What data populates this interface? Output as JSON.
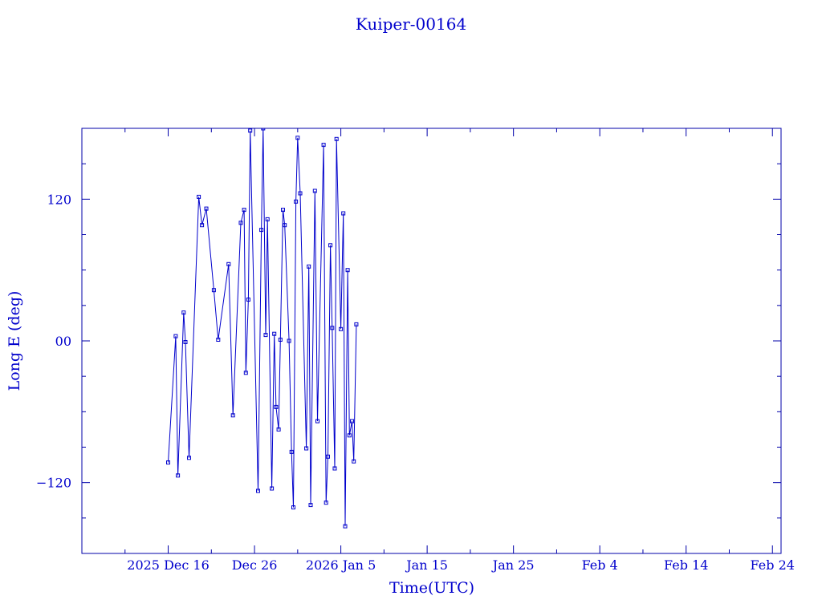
{
  "chart_data": {
    "type": "line",
    "title": "Kuiper-00164",
    "xlabel": "Time(UTC)",
    "ylabel": "Long E (deg)",
    "xlim": [
      "2025-12-06",
      "2026-02-25"
    ],
    "ylim": [
      -180,
      180
    ],
    "x_ticks": [
      {
        "date": "2025-12-16",
        "label": "2025 Dec 16"
      },
      {
        "date": "2025-12-26",
        "label": "Dec 26"
      },
      {
        "date": "2026-01-05",
        "label": "2026 Jan  5"
      },
      {
        "date": "2026-01-15",
        "label": "Jan 15"
      },
      {
        "date": "2026-01-25",
        "label": "Jan 25"
      },
      {
        "date": "2026-02-04",
        "label": "Feb  4"
      },
      {
        "date": "2026-02-14",
        "label": "Feb 14"
      },
      {
        "date": "2026-02-24",
        "label": "Feb 24"
      }
    ],
    "y_ticks": [
      {
        "value": 120,
        "label": "120"
      },
      {
        "value": 0,
        "label": "00"
      },
      {
        "value": -120,
        "label": "−120"
      }
    ],
    "grid": false,
    "marker": "square",
    "color": "#0000cc",
    "series": [
      {
        "points": [
          [
            "2025-12-16T00:00",
            -103
          ],
          [
            "2025-12-16T21:00",
            4
          ],
          [
            "2025-12-17T03:00",
            -114
          ],
          [
            "2025-12-17T19:00",
            24
          ],
          [
            "2025-12-18T00:00",
            -1
          ],
          [
            "2025-12-18T10:00",
            -99
          ],
          [
            "2025-12-19T13:00",
            122
          ],
          [
            "2025-12-19T22:00",
            98
          ],
          [
            "2025-12-20T10:00",
            112
          ],
          [
            "2025-12-21T07:00",
            43
          ],
          [
            "2025-12-21T19:00",
            1
          ],
          [
            "2025-12-23T00:00",
            65
          ],
          [
            "2025-12-23T12:00",
            -63
          ],
          [
            "2025-12-24T10:00",
            100
          ],
          [
            "2025-12-24T19:00",
            111
          ],
          [
            "2025-12-25T00:00",
            -27
          ],
          [
            "2025-12-25T07:00",
            35
          ],
          [
            "2025-12-25T12:00",
            178
          ],
          [
            "2025-12-26T10:00",
            -127
          ],
          [
            "2025-12-26T19:00",
            94
          ],
          [
            "2025-12-27T00:00",
            180
          ],
          [
            "2025-12-27T07:00",
            5
          ],
          [
            "2025-12-27T12:00",
            103
          ],
          [
            "2025-12-28T00:00",
            -125
          ],
          [
            "2025-12-28T07:00",
            6
          ],
          [
            "2025-12-28T12:00",
            -56
          ],
          [
            "2025-12-28T19:00",
            -75
          ],
          [
            "2025-12-29T00:00",
            1
          ],
          [
            "2025-12-29T07:00",
            111
          ],
          [
            "2025-12-29T12:00",
            98
          ],
          [
            "2025-12-30T00:00",
            0
          ],
          [
            "2025-12-30T07:00",
            -94
          ],
          [
            "2025-12-30T12:00",
            -141
          ],
          [
            "2025-12-30T19:00",
            118
          ],
          [
            "2025-12-31T00:00",
            172
          ],
          [
            "2025-12-31T07:00",
            125
          ],
          [
            "2026-01-01T00:00",
            -91
          ],
          [
            "2026-01-01T07:00",
            63
          ],
          [
            "2026-01-01T12:00",
            -139
          ],
          [
            "2026-01-02T00:00",
            127
          ],
          [
            "2026-01-02T07:00",
            -68
          ],
          [
            "2026-01-03T00:00",
            166
          ],
          [
            "2026-01-03T07:00",
            -137
          ],
          [
            "2026-01-03T12:00",
            -98
          ],
          [
            "2026-01-03T19:00",
            81
          ],
          [
            "2026-01-04T00:00",
            11
          ],
          [
            "2026-01-04T07:00",
            -108
          ],
          [
            "2026-01-04T12:00",
            171
          ],
          [
            "2026-01-05T00:00",
            10
          ],
          [
            "2026-01-05T07:00",
            108
          ],
          [
            "2026-01-05T12:00",
            -157
          ],
          [
            "2026-01-05T19:00",
            60
          ],
          [
            "2026-01-06T00:00",
            -80
          ],
          [
            "2026-01-06T07:00",
            -68
          ],
          [
            "2026-01-06T12:00",
            -102
          ],
          [
            "2026-01-06T19:00",
            14
          ]
        ]
      }
    ]
  }
}
